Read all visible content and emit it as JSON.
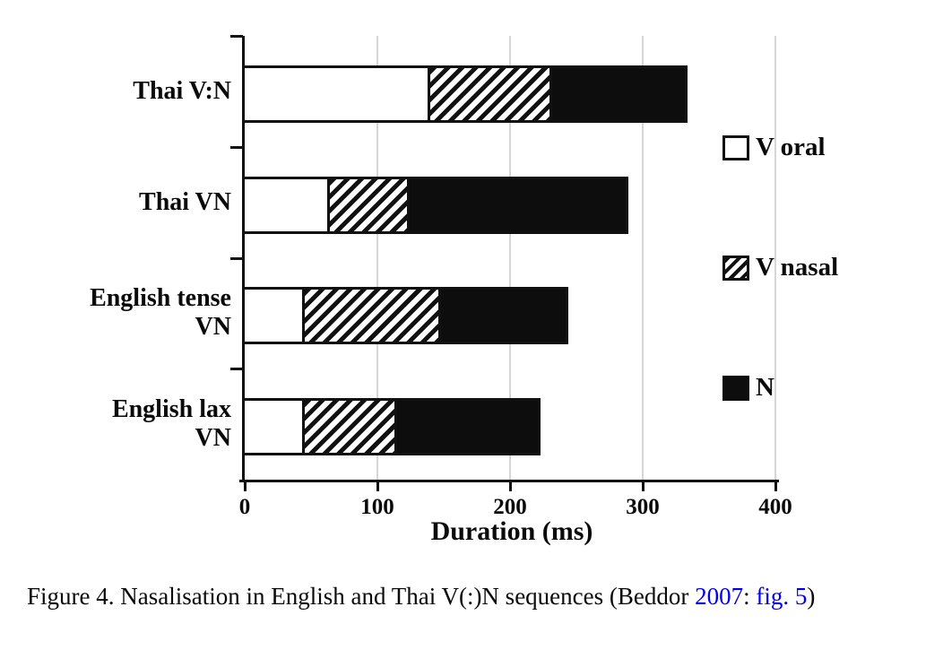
{
  "chart_data": {
    "type": "bar",
    "orientation": "horizontal",
    "stacked": true,
    "title": "",
    "xlabel": "Duration (ms)",
    "ylabel": "",
    "xlim": [
      0,
      400
    ],
    "xticks": [
      0,
      100,
      200,
      300,
      400
    ],
    "grid": "vertical-light",
    "legend_position": "right",
    "units": "ms",
    "categories": [
      "Thai V:N",
      "Thai VN",
      "English tense VN",
      "English lax VN"
    ],
    "categories_display": [
      [
        "Thai V:N"
      ],
      [
        "Thai VN"
      ],
      [
        "English tense",
        "VN"
      ],
      [
        "English lax",
        "VN"
      ]
    ],
    "series": [
      {
        "name": "V oral",
        "fill": "white",
        "values": [
          138,
          62,
          43,
          43
        ]
      },
      {
        "name": "V nasal",
        "fill": "hatched",
        "values": [
          94,
          62,
          105,
          72
        ]
      },
      {
        "name": "N",
        "fill": "black",
        "values": [
          100,
          163,
          94,
          106
        ]
      }
    ],
    "totals": [
      332,
      287,
      242,
      221
    ]
  },
  "legend": {
    "items": [
      {
        "label": "V oral",
        "fill": "white"
      },
      {
        "label": "V nasal",
        "fill": "hatched"
      },
      {
        "label": "N",
        "fill": "black"
      }
    ]
  },
  "figure": {
    "caption": {
      "text_before": "Figure 4. Nasalisation in English and Thai V(:)N sequences (Beddor ",
      "link_year": "2007",
      "separator": ": ",
      "link_fig": "fig. 5",
      "text_after": ")"
    }
  },
  "colors": {
    "axis": "#111111",
    "bar_black": "#0d0d0d",
    "gridline": "#d6d6d6",
    "link_blue": "#0000EE",
    "text": "#0a0a0a"
  }
}
